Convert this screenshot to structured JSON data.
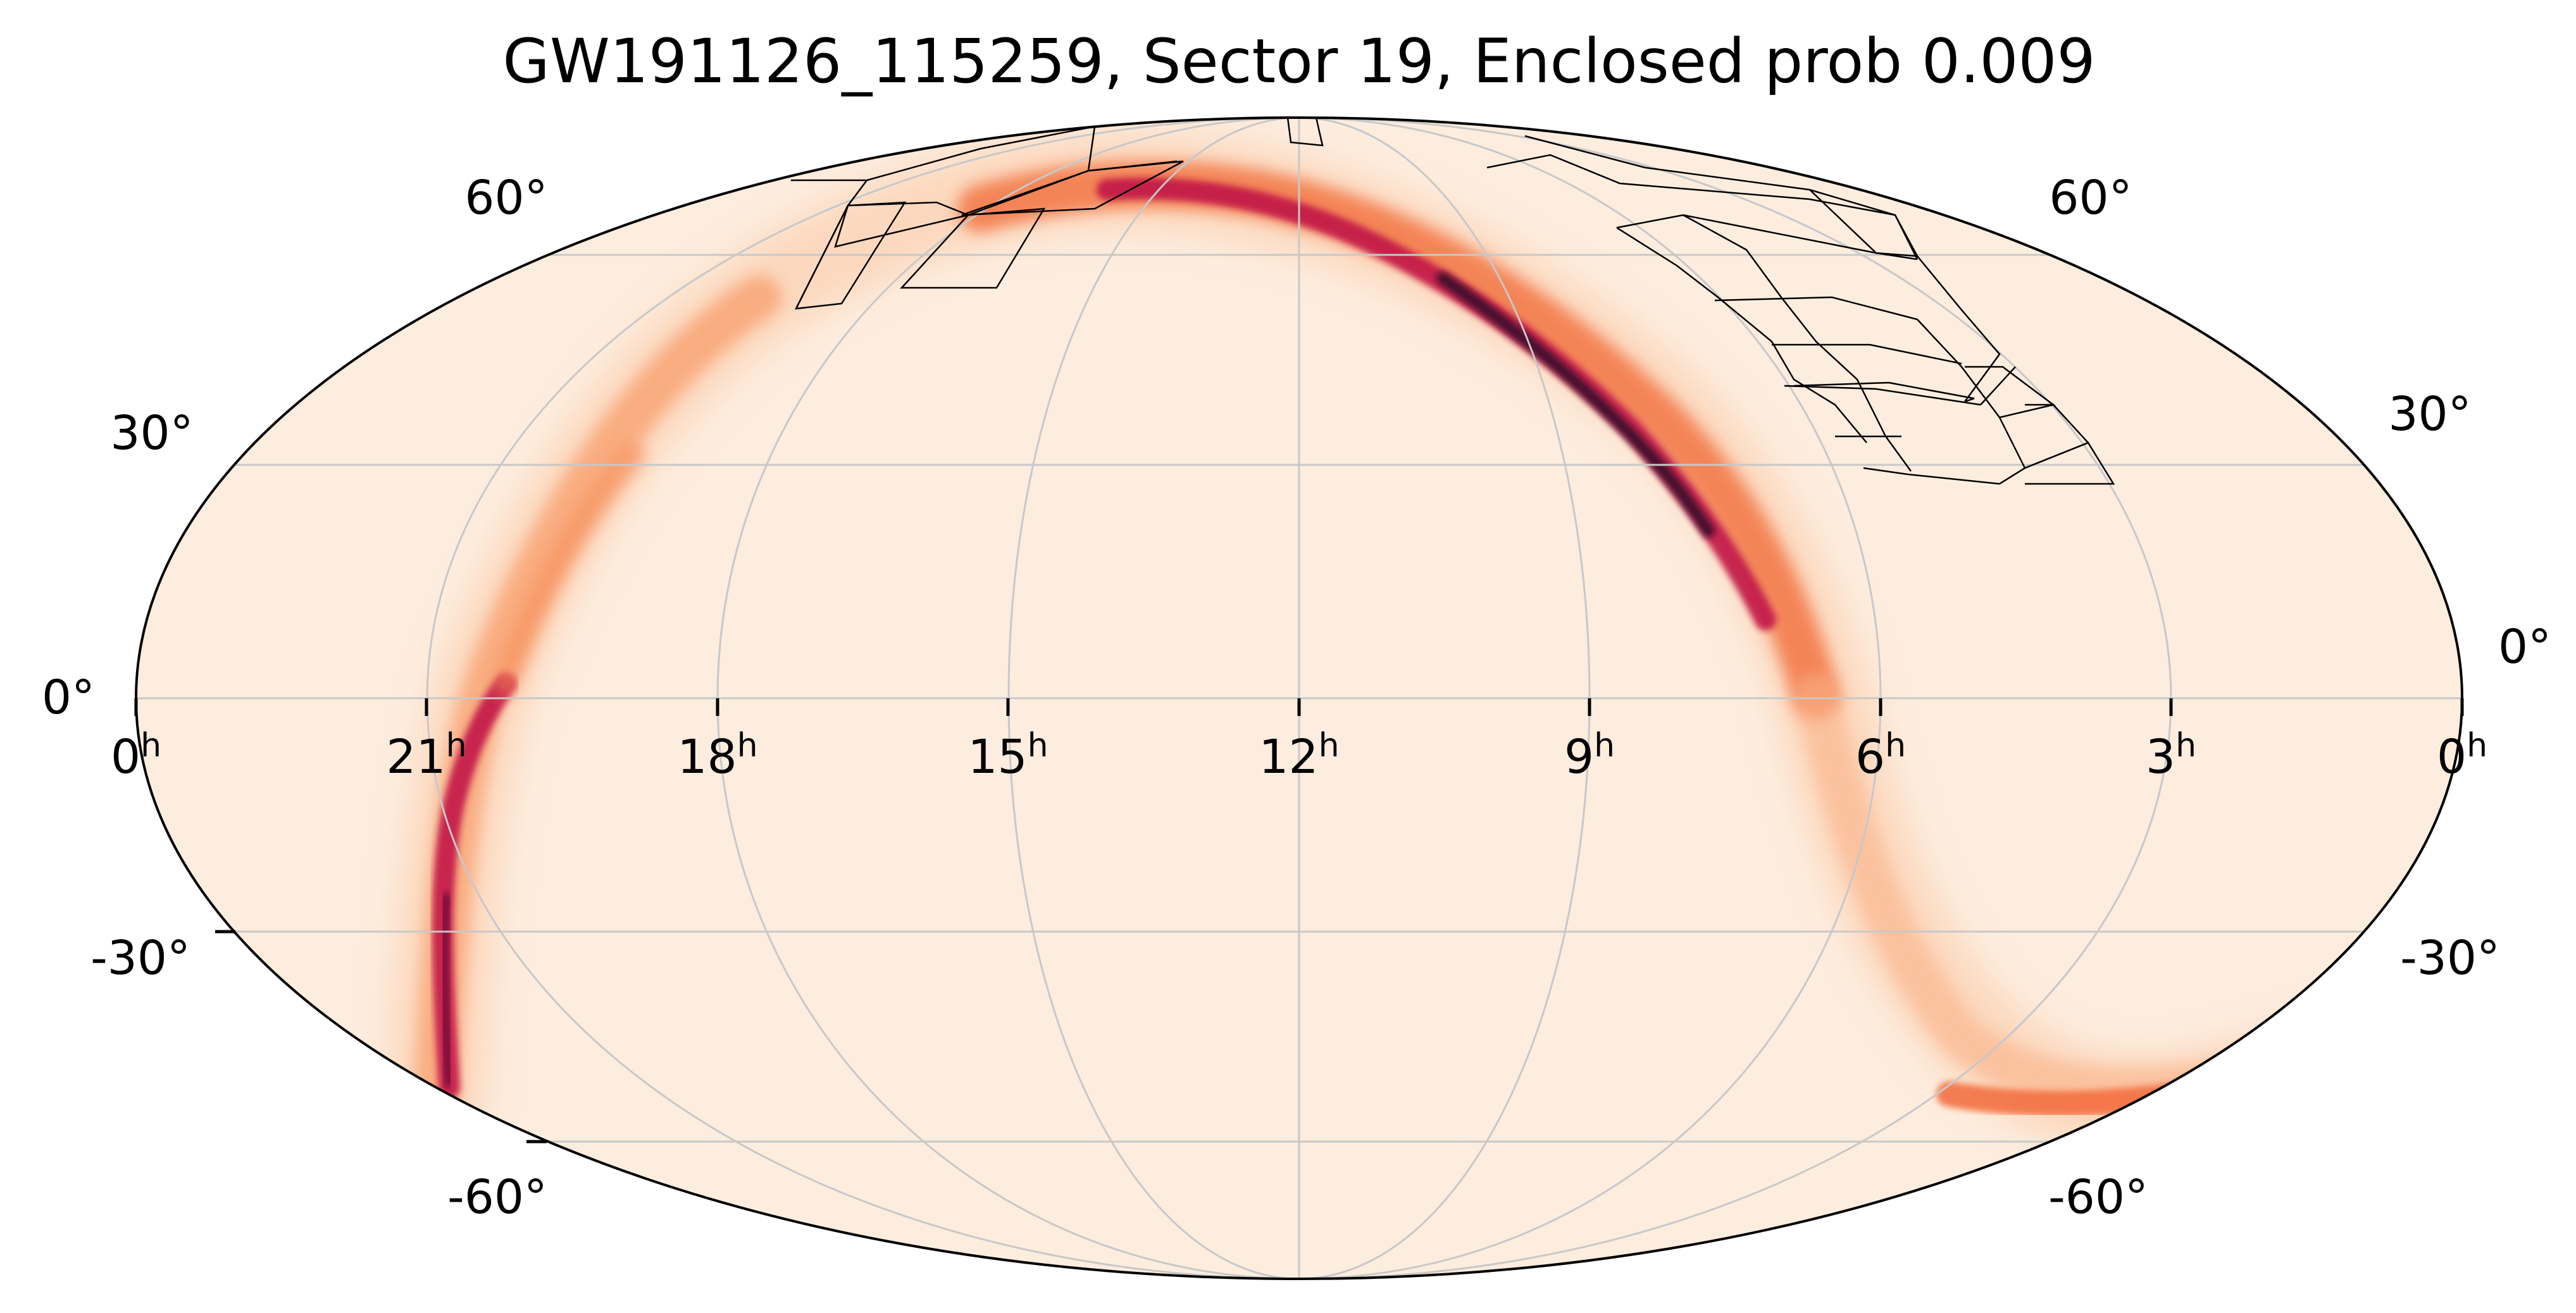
{
  "title": "GW191126_115259, Sector 19, Enclosed prob 0.009",
  "colors": {
    "background": "#fdeddf",
    "band_low": "#fbb58a",
    "band_mid": "#f0603b",
    "band_high": "#b8114a",
    "band_peak": "#2b0d24",
    "grid": "#c8c8c8",
    "outline": "#000000"
  },
  "ra_ticks": [
    {
      "label": "0",
      "unit": "h"
    },
    {
      "label": "21",
      "unit": "h"
    },
    {
      "label": "18",
      "unit": "h"
    },
    {
      "label": "15",
      "unit": "h"
    },
    {
      "label": "12",
      "unit": "h"
    },
    {
      "label": "9",
      "unit": "h"
    },
    {
      "label": "6",
      "unit": "h"
    },
    {
      "label": "3",
      "unit": "h"
    },
    {
      "label": "0",
      "unit": "h"
    }
  ],
  "dec_ticks_left": [
    "60°",
    "30°",
    "0°",
    "-30°",
    "-60°"
  ],
  "dec_ticks_right": [
    "60°",
    "30°",
    "0°",
    "-30°",
    "-60°"
  ]
}
